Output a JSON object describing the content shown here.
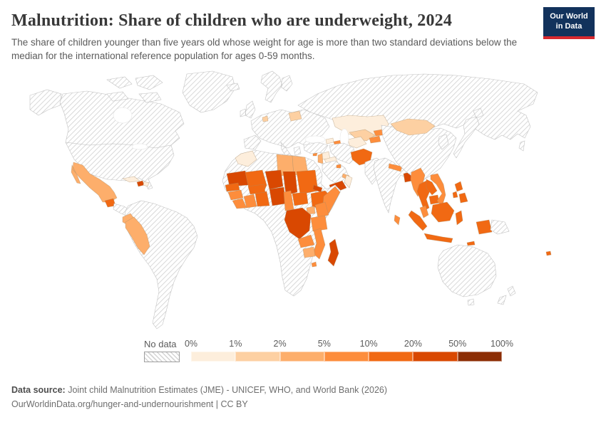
{
  "header": {
    "title": "Malnutrition: Share of children who are underweight, 2024",
    "subtitle": "The share of children younger than five years old whose weight for age is more than two standard deviations below the median for the international reference population for ages 0-59 months.",
    "logo": {
      "line1": "Our World",
      "line2": "in Data",
      "bg_color": "#12325c",
      "accent_color": "#d7282f"
    }
  },
  "legend": {
    "no_data_label": "No data",
    "tick_labels": [
      "0%",
      "1%",
      "2%",
      "5%",
      "10%",
      "20%",
      "50%",
      "100%"
    ],
    "bins": [
      "0-1%",
      "1-2%",
      "2-5%",
      "5-10%",
      "10-20%",
      "20-50%",
      "50-100%"
    ],
    "bin_colors": {
      "0-1%": "#fdeedc",
      "1-2%": "#fdd0a2",
      "2-5%": "#fdae6b",
      "5-10%": "#fd8d3c",
      "10-20%": "#f16913",
      "20-50%": "#d94801",
      "50-100%": "#8c2d04"
    }
  },
  "footer": {
    "source_label": "Data source:",
    "source_text": " Joint child Malnutrition Estimates (JME) - UNICEF, WHO, and World Bank (2026)",
    "link_line": "OurWorldinData.org/hunger-and-undernourishment | CC BY"
  },
  "chart_data": {
    "type": "choropleth_map",
    "title": "Malnutrition: Share of children who are underweight, 2024",
    "unit": "% of children under 5",
    "legend_bins": [
      "0-1%",
      "1-2%",
      "2-5%",
      "5-10%",
      "10-20%",
      "20-50%",
      "50-100%"
    ],
    "countries": [
      {
        "id": "mexico",
        "name": "Mexico",
        "bin": "2-5%"
      },
      {
        "id": "guatemala",
        "name": "Guatemala",
        "bin": "10-20%"
      },
      {
        "id": "cuba",
        "name": "Cuba",
        "bin": "0-1%"
      },
      {
        "id": "haiti",
        "name": "Haiti",
        "bin": "20-50%"
      },
      {
        "id": "dominican-republic",
        "name": "Dominican Republic",
        "bin": "0-1%"
      },
      {
        "id": "ecuador",
        "name": "Ecuador",
        "bin": "2-5%"
      },
      {
        "id": "peru",
        "name": "Peru",
        "bin": "2-5%"
      },
      {
        "id": "netherlands",
        "name": "Netherlands",
        "bin": "1-2%"
      },
      {
        "id": "belarus",
        "name": "Belarus",
        "bin": "1-2%"
      },
      {
        "id": "morocco",
        "name": "Morocco",
        "bin": "0-1%"
      },
      {
        "id": "libya",
        "name": "Libya",
        "bin": "2-5%"
      },
      {
        "id": "egypt",
        "name": "Egypt",
        "bin": "2-5%"
      },
      {
        "id": "mauritania",
        "name": "Mauritania",
        "bin": "20-50%"
      },
      {
        "id": "mali",
        "name": "Mali",
        "bin": "10-20%"
      },
      {
        "id": "niger",
        "name": "Niger",
        "bin": "20-50%"
      },
      {
        "id": "chad",
        "name": "Chad",
        "bin": "20-50%"
      },
      {
        "id": "sudan",
        "name": "Sudan",
        "bin": "10-20%"
      },
      {
        "id": "eritrea",
        "name": "Eritrea",
        "bin": "20-50%"
      },
      {
        "id": "ethiopia",
        "name": "Ethiopia",
        "bin": "10-20%"
      },
      {
        "id": "somalia",
        "name": "Somalia",
        "bin": "5-10%"
      },
      {
        "id": "senegal",
        "name": "Senegal",
        "bin": "10-20%"
      },
      {
        "id": "guinea",
        "name": "Guinea",
        "bin": "5-10%"
      },
      {
        "id": "sierra-leone-liberia",
        "name": "Sierra Leone / Liberia",
        "bin": "5-10%"
      },
      {
        "id": "cote-divoire",
        "name": "Cote d'Ivoire",
        "bin": "5-10%"
      },
      {
        "id": "ghana-togo-benin",
        "name": "Ghana / Togo / Benin",
        "bin": "10-20%"
      },
      {
        "id": "burkina-faso",
        "name": "Burkina Faso",
        "bin": "10-20%"
      },
      {
        "id": "nigeria",
        "name": "Nigeria",
        "bin": "20-50%"
      },
      {
        "id": "cameroon",
        "name": "Cameroon",
        "bin": "5-10%"
      },
      {
        "id": "central-african-republic",
        "name": "Central African Republic",
        "bin": "10-20%"
      },
      {
        "id": "uganda",
        "name": "Uganda",
        "bin": "2-5%"
      },
      {
        "id": "kenya",
        "name": "Kenya",
        "bin": "5-10%"
      },
      {
        "id": "democratic-republic-of-congo",
        "name": "Democratic Republic of Congo",
        "bin": "20-50%"
      },
      {
        "id": "tanzania",
        "name": "Tanzania",
        "bin": "5-10%"
      },
      {
        "id": "zambia",
        "name": "Zambia",
        "bin": "5-10%"
      },
      {
        "id": "malawi-mozambique",
        "name": "Malawi / Mozambique",
        "bin": "5-10%"
      },
      {
        "id": "zimbabwe",
        "name": "Zimbabwe",
        "bin": "2-5%"
      },
      {
        "id": "madagascar",
        "name": "Madagascar",
        "bin": "20-50%"
      },
      {
        "id": "eswatini-lesotho",
        "name": "Eswatini / Lesotho",
        "bin": "5-10%"
      },
      {
        "id": "syria",
        "name": "Syria",
        "bin": "0-1%"
      },
      {
        "id": "iraq",
        "name": "Iraq",
        "bin": "0-1%"
      },
      {
        "id": "levant",
        "name": "Jordan / Lebanon / Israel",
        "bin": "2-5%"
      },
      {
        "id": "cyprus",
        "name": "Cyprus",
        "bin": "5-10%"
      },
      {
        "id": "kuwait",
        "name": "Kuwait",
        "bin": "5-10%"
      },
      {
        "id": "qatar-uae",
        "name": "Qatar / UAE",
        "bin": "2-5%"
      },
      {
        "id": "yemen",
        "name": "Yemen",
        "bin": "20-50%"
      },
      {
        "id": "oman",
        "name": "Oman",
        "bin": "0-1%"
      },
      {
        "id": "georgia",
        "name": "Georgia",
        "bin": "0-1%"
      },
      {
        "id": "azerbaijan",
        "name": "Azerbaijan",
        "bin": "5-10%"
      },
      {
        "id": "kazakhstan",
        "name": "Kazakhstan",
        "bin": "0-1%"
      },
      {
        "id": "turkmenistan",
        "name": "Turkmenistan",
        "bin": "0-1%"
      },
      {
        "id": "uzbekistan",
        "name": "Uzbekistan",
        "bin": "1-2%"
      },
      {
        "id": "kyrgyzstan",
        "name": "Kyrgyzstan",
        "bin": "5-10%"
      },
      {
        "id": "tajikistan",
        "name": "Tajikistan",
        "bin": "5-10%"
      },
      {
        "id": "afghanistan",
        "name": "Afghanistan",
        "bin": "10-20%"
      },
      {
        "id": "mongolia",
        "name": "Mongolia",
        "bin": "1-2%"
      },
      {
        "id": "nepal",
        "name": "Nepal",
        "bin": "5-10%"
      },
      {
        "id": "bangladesh",
        "name": "Bangladesh",
        "bin": "20-50%"
      },
      {
        "id": "sri-lanka",
        "name": "Sri Lanka",
        "bin": "5-10%"
      },
      {
        "id": "myanmar",
        "name": "Myanmar",
        "bin": "5-10%"
      },
      {
        "id": "thailand",
        "name": "Thailand",
        "bin": "10-20%"
      },
      {
        "id": "laos",
        "name": "Laos",
        "bin": "10-20%"
      },
      {
        "id": "cambodia",
        "name": "Cambodia",
        "bin": "10-20%"
      },
      {
        "id": "vietnam",
        "name": "Vietnam",
        "bin": "5-10%"
      },
      {
        "id": "malaysia",
        "name": "Malaysia",
        "bin": "5-10%"
      },
      {
        "id": "indonesia",
        "name": "Indonesia",
        "bin": "10-20%"
      },
      {
        "id": "philippines",
        "name": "Philippines",
        "bin": "10-20%"
      },
      {
        "id": "timor-leste",
        "name": "Timor-Leste",
        "bin": "10-20%"
      },
      {
        "id": "fiji",
        "name": "Fiji",
        "bin": "10-20%"
      }
    ],
    "no_data_regions": [
      "Canada",
      "United States",
      "Greenland",
      "Brazil",
      "Colombia",
      "Venezuela",
      "Bolivia",
      "Argentina",
      "Chile",
      "Paraguay",
      "Uruguay",
      "most of Europe",
      "Russia",
      "China",
      "India",
      "Pakistan",
      "Iran",
      "Turkey",
      "Saudi Arabia",
      "Algeria",
      "Western Sahara",
      "South Sudan",
      "Angola",
      "Namibia",
      "Botswana",
      "South Africa",
      "Japan",
      "Korea",
      "Papua New Guinea",
      "Australia",
      "New Zealand"
    ]
  }
}
